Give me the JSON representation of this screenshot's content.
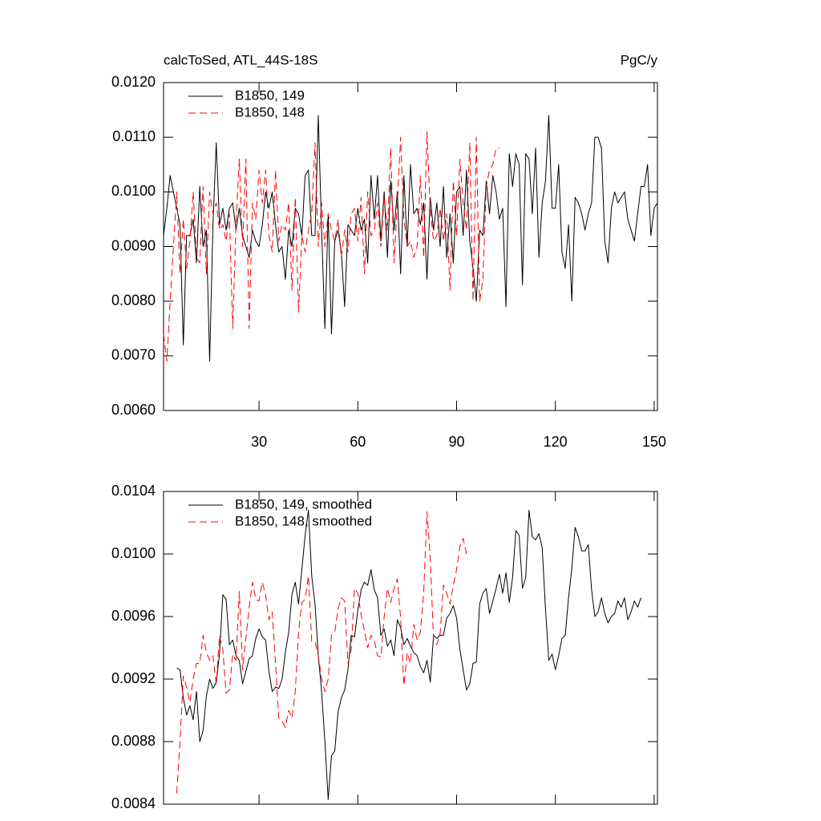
{
  "chart_data": [
    {
      "type": "line",
      "title": "calcToSed, ATL_44S-18S",
      "units": "PgC/y",
      "xlim": [
        1,
        151
      ],
      "xticks": [
        30,
        60,
        90,
        120,
        150
      ],
      "xtick_labels": true,
      "ylim": [
        0.006,
        0.012
      ],
      "yticks": [
        {
          "value": 0.006,
          "label": "0.0060"
        },
        {
          "value": 0.007,
          "label": "0.0070"
        },
        {
          "value": 0.008,
          "label": "0.0080"
        },
        {
          "value": 0.009,
          "label": "0.0090"
        },
        {
          "value": 0.01,
          "label": "0.0100"
        },
        {
          "value": 0.011,
          "label": "0.0110"
        },
        {
          "value": 0.012,
          "label": "0.0120"
        }
      ],
      "legend": "upper left",
      "x": [
        1,
        2,
        3,
        4,
        5,
        6,
        7,
        8,
        9,
        10,
        11,
        12,
        13,
        14,
        15,
        16,
        17,
        18,
        19,
        20,
        21,
        22,
        23,
        24,
        25,
        26,
        27,
        28,
        29,
        30,
        31,
        32,
        33,
        34,
        35,
        36,
        37,
        38,
        39,
        40,
        41,
        42,
        43,
        44,
        45,
        46,
        47,
        48,
        49,
        50,
        51,
        52,
        53,
        54,
        55,
        56,
        57,
        58,
        59,
        60,
        61,
        62,
        63,
        64,
        65,
        66,
        67,
        68,
        69,
        70,
        71,
        72,
        73,
        74,
        75,
        76,
        77,
        78,
        79,
        80,
        81,
        82,
        83,
        84,
        85,
        86,
        87,
        88,
        89,
        90,
        91,
        92,
        93,
        94,
        95,
        96,
        97,
        98,
        99,
        100,
        101,
        102,
        103,
        104,
        105,
        106,
        107,
        108,
        109,
        110,
        111,
        112,
        113,
        114,
        115,
        116,
        117,
        118,
        119,
        120,
        121,
        122,
        123,
        124,
        125,
        126,
        127,
        128,
        129,
        130,
        131,
        132,
        133,
        134,
        135,
        136,
        137,
        138,
        139,
        140,
        141,
        142,
        143,
        144,
        145,
        146,
        147,
        148,
        149,
        150,
        151
      ],
      "series": [
        {
          "name": "B1850, 149",
          "color": "#000000",
          "line_style": "solid",
          "values": [
            0.0092,
            0.0097,
            0.0103,
            0.01,
            0.0097,
            0.0094,
            0.0072,
            0.0092,
            0.0092,
            0.0095,
            0.0087,
            0.0101,
            0.009,
            0.0093,
            0.0069,
            0.0094,
            0.0109,
            0.0094,
            0.0097,
            0.0093,
            0.0097,
            0.0098,
            0.0093,
            0.0097,
            0.0092,
            0.009,
            0.0088,
            0.0093,
            0.0091,
            0.009,
            0.0094,
            0.01,
            0.0097,
            0.01,
            0.0094,
            0.0089,
            0.009,
            0.0084,
            0.0093,
            0.009,
            0.0097,
            0.0096,
            0.0092,
            0.0103,
            0.0104,
            0.0092,
            0.0092,
            0.0114,
            0.0093,
            0.0075,
            0.0096,
            0.0074,
            0.0091,
            0.0093,
            0.0089,
            0.0079,
            0.0094,
            0.0093,
            0.0092,
            0.0097,
            0.0093,
            0.0095,
            0.0087,
            0.0103,
            0.0095,
            0.0103,
            0.0091,
            0.01,
            0.0088,
            0.0102,
            0.0093,
            0.01,
            0.0085,
            0.0103,
            0.009,
            0.0105,
            0.0096,
            0.0097,
            0.0094,
            0.0098,
            0.0084,
            0.0099,
            0.0093,
            0.0098,
            0.009,
            0.0101,
            0.0088,
            0.0096,
            0.0087,
            0.01,
            0.0101,
            0.0092,
            0.0104,
            0.0091,
            0.0086,
            0.008,
            0.0093,
            0.0092,
            0.0102,
            0.0096,
            0.0103,
            0.01,
            0.0095,
            0.0097,
            0.0079,
            0.0107,
            0.0101,
            0.0107,
            0.0105,
            0.0083,
            0.0107,
            0.0106,
            0.0096,
            0.0108,
            0.0088,
            0.0098,
            0.0102,
            0.0114,
            0.0097,
            0.0097,
            0.0105,
            0.0089,
            0.0086,
            0.0094,
            0.008,
            0.0099,
            0.0098,
            0.0096,
            0.0093,
            0.0096,
            0.0098,
            0.011,
            0.011,
            0.0108,
            0.0091,
            0.0087,
            0.0097,
            0.01,
            0.0098,
            0.0099,
            0.01,
            0.0095,
            0.0093,
            0.0091,
            0.0096,
            0.0101,
            0.0101,
            0.0105,
            0.0092,
            0.0097,
            0.0098
          ]
        },
        {
          "name": "B1850, 148",
          "color": "#ff0000",
          "line_style": "dashed",
          "values": [
            0.0074,
            0.0069,
            0.008,
            0.009,
            0.01,
            0.0085,
            0.0095,
            0.0086,
            0.0091,
            0.01,
            0.0088,
            0.0087,
            0.0101,
            0.0085,
            0.01,
            0.0096,
            0.0098,
            0.0093,
            0.0094,
            0.0091,
            0.0096,
            0.0075,
            0.0094,
            0.0106,
            0.009,
            0.0106,
            0.0075,
            0.0098,
            0.0095,
            0.0104,
            0.0098,
            0.0104,
            0.0092,
            0.0089,
            0.0104,
            0.0091,
            0.0094,
            0.0093,
            0.0098,
            0.0082,
            0.0099,
            0.0078,
            0.0092,
            0.0089,
            0.0093,
            0.0096,
            0.0109,
            0.009,
            0.0098,
            0.009,
            0.0096,
            0.0093,
            0.0091,
            0.0095,
            0.0088,
            0.0093,
            0.0089,
            0.0096,
            0.0097,
            0.0091,
            0.0099,
            0.0085,
            0.01,
            0.0092,
            0.0093,
            0.0098,
            0.009,
            0.0099,
            0.0093,
            0.0108,
            0.0087,
            0.0098,
            0.011,
            0.0095,
            0.009,
            0.0091,
            0.0088,
            0.009,
            0.0103,
            0.0088,
            0.0111,
            0.0097,
            0.0091,
            0.0092,
            0.0097,
            0.0091,
            0.0096,
            0.0082,
            0.0102,
            0.0092,
            0.0106,
            0.0098,
            0.0093,
            0.0109,
            0.008,
            0.011,
            0.008,
            0.0084,
            0.0101,
            0.0104,
            0.0105,
            0.0108,
            0.0108,
            null,
            null,
            null,
            null,
            null,
            null,
            null,
            null,
            null,
            null,
            null,
            null,
            null,
            null,
            null,
            null,
            null,
            null,
            null,
            null,
            null,
            null,
            null,
            null,
            null,
            null,
            null,
            null,
            null,
            null,
            null,
            null,
            null,
            null,
            null,
            null,
            null,
            null,
            null,
            null,
            null,
            null,
            null,
            null,
            null,
            null,
            null,
            null
          ]
        }
      ]
    },
    {
      "type": "line",
      "xlim": [
        1,
        151
      ],
      "xticks": [
        30,
        60,
        90,
        120,
        150
      ],
      "xtick_labels": false,
      "ylim": [
        0.0084,
        0.0104
      ],
      "yticks": [
        {
          "value": 0.0084,
          "label": "0.0084"
        },
        {
          "value": 0.0088,
          "label": "0.0088"
        },
        {
          "value": 0.0092,
          "label": "0.0092"
        },
        {
          "value": 0.0096,
          "label": "0.0096"
        },
        {
          "value": 0.01,
          "label": "0.0100"
        },
        {
          "value": 0.0104,
          "label": "0.0104"
        }
      ],
      "legend": "upper left",
      "x": [
        1,
        2,
        3,
        4,
        5,
        6,
        7,
        8,
        9,
        10,
        11,
        12,
        13,
        14,
        15,
        16,
        17,
        18,
        19,
        20,
        21,
        22,
        23,
        24,
        25,
        26,
        27,
        28,
        29,
        30,
        31,
        32,
        33,
        34,
        35,
        36,
        37,
        38,
        39,
        40,
        41,
        42,
        43,
        44,
        45,
        46,
        47,
        48,
        49,
        50,
        51,
        52,
        53,
        54,
        55,
        56,
        57,
        58,
        59,
        60,
        61,
        62,
        63,
        64,
        65,
        66,
        67,
        68,
        69,
        70,
        71,
        72,
        73,
        74,
        75,
        76,
        77,
        78,
        79,
        80,
        81,
        82,
        83,
        84,
        85,
        86,
        87,
        88,
        89,
        90,
        91,
        92,
        93,
        94,
        95,
        96,
        97,
        98,
        99,
        100,
        101,
        102,
        103,
        104,
        105,
        106,
        107,
        108,
        109,
        110,
        111,
        112,
        113,
        114,
        115,
        116,
        117,
        118,
        119,
        120,
        121,
        122,
        123,
        124,
        125,
        126,
        127,
        128,
        129,
        130,
        131,
        132,
        133,
        134,
        135,
        136,
        137,
        138,
        139,
        140,
        141,
        142,
        143,
        144,
        145,
        146,
        147,
        148,
        149,
        150,
        151
      ],
      "series": [
        {
          "name": "B1850, 149, smoothed",
          "color": "#000000",
          "line_style": "solid",
          "values": [
            null,
            null,
            null,
            null,
            0.00927,
            0.00926,
            0.00908,
            0.00897,
            0.00903,
            0.00894,
            0.00912,
            0.0088,
            0.00887,
            0.00909,
            0.0092,
            0.00914,
            0.00918,
            0.00936,
            0.00974,
            0.00971,
            0.00942,
            0.00945,
            0.00935,
            0.00932,
            0.00917,
            0.00925,
            0.00933,
            0.00935,
            0.00946,
            0.00952,
            0.00947,
            0.00945,
            0.00925,
            0.00912,
            0.00915,
            0.00914,
            0.0092,
            0.00937,
            0.0095,
            0.00974,
            0.00982,
            0.00968,
            0.0099,
            0.01012,
            0.01028,
            0.00986,
            0.00968,
            0.00935,
            0.00912,
            0.0088,
            0.00843,
            0.00871,
            0.00874,
            0.00899,
            0.00908,
            0.00913,
            0.00926,
            0.00948,
            0.00947,
            0.00964,
            0.00977,
            0.00982,
            0.0098,
            0.0099,
            0.00977,
            0.00972,
            0.00948,
            0.00952,
            0.00941,
            0.00945,
            0.00935,
            0.00958,
            0.00953,
            0.00942,
            0.00946,
            0.00941,
            0.00937,
            0.00935,
            0.00928,
            0.00924,
            0.00932,
            0.00918,
            0.00948,
            0.00946,
            0.00948,
            0.00948,
            0.00959,
            0.00962,
            0.00967,
            0.00959,
            0.00939,
            0.00926,
            0.00913,
            0.00917,
            0.0093,
            0.00931,
            0.00968,
            0.00975,
            0.00978,
            0.00962,
            0.0097,
            0.00978,
            0.00987,
            0.00975,
            0.00988,
            0.00969,
            0.00985,
            0.01015,
            0.01012,
            0.00978,
            0.00985,
            0.01028,
            0.01011,
            0.01009,
            0.01013,
            0.01004,
            0.00965,
            0.00932,
            0.00936,
            0.00926,
            0.00935,
            0.00946,
            0.00948,
            0.00972,
            0.00991,
            0.01017,
            0.01011,
            0.01002,
            0.01002,
            0.01006,
            0.00977,
            0.0096,
            0.00963,
            0.00972,
            0.00962,
            0.00956,
            0.0096,
            0.00962,
            0.0097,
            0.00966,
            0.00972,
            0.00958,
            0.00963,
            0.0097,
            0.00966,
            0.00972,
            null,
            null,
            null,
            null,
            null
          ]
        },
        {
          "name": "B1850, 148, smoothed",
          "color": "#ff0000",
          "line_style": "dashed",
          "values": [
            null,
            null,
            null,
            null,
            0.00847,
            0.0088,
            0.00922,
            0.00915,
            0.00905,
            0.0092,
            0.0093,
            0.0093,
            0.00948,
            0.00937,
            0.00932,
            0.00935,
            0.00917,
            0.00948,
            0.00939,
            0.00911,
            0.00913,
            0.00936,
            0.00932,
            0.00976,
            0.00926,
            0.00946,
            0.00966,
            0.00982,
            0.00971,
            0.0097,
            0.00982,
            0.00974,
            0.00958,
            0.00963,
            0.0093,
            0.00895,
            0.00893,
            0.00889,
            0.009,
            0.00895,
            0.00912,
            0.0095,
            0.00969,
            0.00971,
            0.00986,
            0.00944,
            0.00944,
            0.00935,
            0.0092,
            0.00912,
            0.0092,
            0.00948,
            0.0095,
            0.00965,
            0.00972,
            0.0097,
            0.0093,
            0.00939,
            0.00978,
            0.00975,
            0.00961,
            0.00951,
            0.0094,
            0.00948,
            0.00945,
            0.00935,
            0.00934,
            0.0096,
            0.00978,
            0.00969,
            0.00978,
            0.00984,
            0.00959,
            0.00916,
            0.00937,
            0.0093,
            0.00955,
            0.00945,
            0.0095,
            0.00975,
            0.01027,
            0.00998,
            0.00945,
            0.00942,
            0.00949,
            0.0098,
            0.00975,
            0.00968,
            0.0098,
            0.0099,
            0.01005,
            0.0101,
            0.01,
            null,
            null,
            null,
            null,
            null,
            null,
            null,
            null,
            null,
            null,
            null,
            null,
            null,
            null,
            null,
            null,
            null,
            null,
            null,
            null,
            null,
            null,
            null,
            null,
            null,
            null,
            null,
            null,
            null,
            null,
            null,
            null,
            null,
            null,
            null,
            null,
            null,
            null,
            null,
            null,
            null,
            null,
            null,
            null,
            null,
            null,
            null,
            null,
            null,
            null,
            null,
            null,
            null,
            null,
            null,
            null,
            null,
            null
          ]
        }
      ]
    }
  ]
}
